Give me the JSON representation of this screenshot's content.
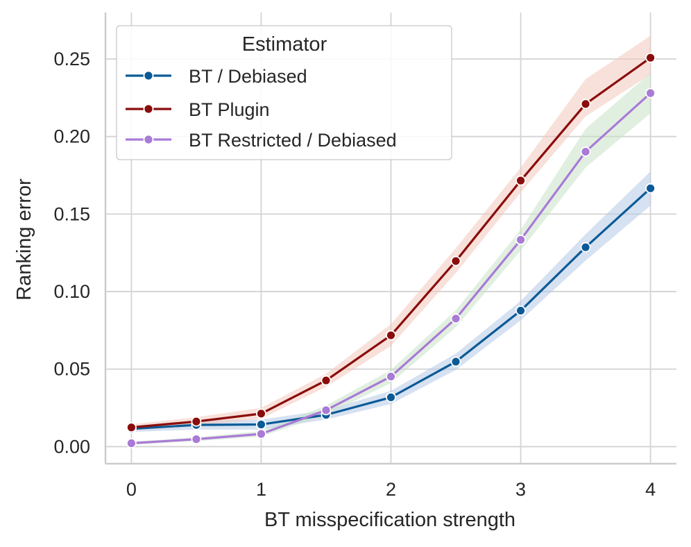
{
  "chart_data": {
    "type": "line",
    "xlabel": "BT misspecification strength",
    "ylabel": "Ranking error",
    "x": [
      0,
      0.5,
      1,
      1.5,
      2,
      2.5,
      3,
      3.5,
      4
    ],
    "xticks": [
      0,
      1,
      2,
      3,
      4
    ],
    "xtick_labels": [
      "0",
      "1",
      "2",
      "3",
      "4"
    ],
    "yticks": [
      0.0,
      0.05,
      0.1,
      0.15,
      0.2,
      0.25
    ],
    "ytick_labels": [
      "0.00",
      "0.05",
      "0.10",
      "0.15",
      "0.20",
      "0.25"
    ],
    "xlim": [
      -0.2,
      4.2
    ],
    "ylim": [
      -0.011,
      0.28
    ],
    "grid": true,
    "legend": {
      "title": "Estimator",
      "placement": "top-left"
    },
    "series": [
      {
        "name": "BT / Debiased",
        "color": "#0b5a96",
        "band_color": "#b5c9e6",
        "values": [
          0.0115,
          0.014,
          0.0143,
          0.0205,
          0.0318,
          0.0548,
          0.0877,
          0.1286,
          0.1666
        ],
        "lower": [
          0.0095,
          0.011,
          0.011,
          0.0175,
          0.0275,
          0.0495,
          0.0815,
          0.12,
          0.1555
        ],
        "upper": [
          0.0135,
          0.017,
          0.0175,
          0.0235,
          0.036,
          0.06,
          0.094,
          0.137,
          0.1775
        ]
      },
      {
        "name": "BT Plugin",
        "color": "#8b0c0c",
        "band_color": "#f2c8bc",
        "values": [
          0.0124,
          0.0162,
          0.0213,
          0.0427,
          0.0718,
          0.1197,
          0.1716,
          0.221,
          0.2508
        ],
        "lower": [
          0.0104,
          0.0135,
          0.018,
          0.0385,
          0.065,
          0.112,
          0.164,
          0.213,
          0.24
        ],
        "upper": [
          0.0144,
          0.019,
          0.025,
          0.047,
          0.079,
          0.128,
          0.18,
          0.237,
          0.265
        ]
      },
      {
        "name": "BT Restricted / Debiased",
        "color": "#a97ad6",
        "band_color": "#c9e2c9",
        "values": [
          0.0022,
          0.0048,
          0.0082,
          0.0235,
          0.0452,
          0.0826,
          0.1334,
          0.1902,
          0.228
        ],
        "lower": [
          0.0012,
          0.0035,
          0.0065,
          0.0205,
          0.041,
          0.077,
          0.1265,
          0.18,
          0.215
        ],
        "upper": [
          0.0032,
          0.0061,
          0.01,
          0.0265,
          0.0495,
          0.088,
          0.14,
          0.205,
          0.241
        ]
      }
    ]
  }
}
